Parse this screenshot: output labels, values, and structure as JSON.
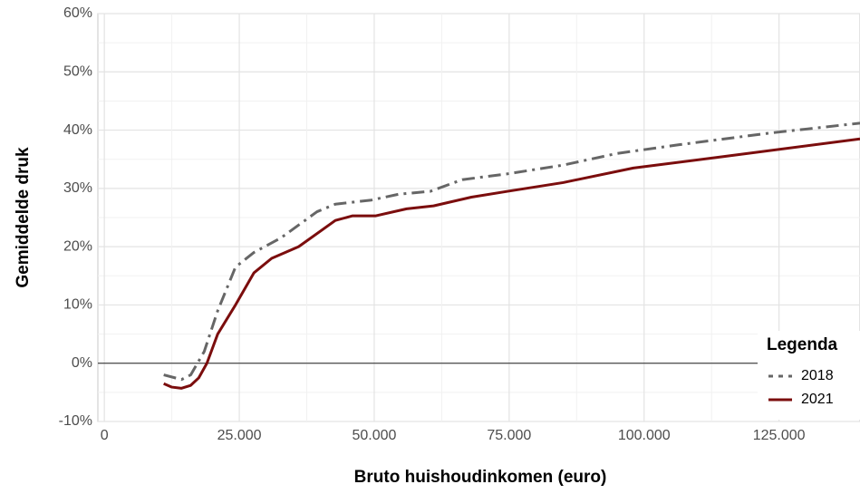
{
  "chart_data": {
    "type": "line",
    "x_label": "Bruto huishoudinkomen (euro)",
    "y_label": "Gemiddelde druk",
    "legend_title": "Legenda",
    "legend_position": "bottom-right",
    "grid": true,
    "xlim": [
      -1200,
      140000
    ],
    "ylim": [
      -10,
      60
    ],
    "xticks": [
      0,
      {
        "value": 25000,
        "label": "25.000"
      },
      {
        "value": 50000,
        "label": "50.000"
      },
      {
        "value": 75000,
        "label": "75.000"
      },
      {
        "value": 100000,
        "label": "100.000"
      },
      {
        "value": 125000,
        "label": "125.000"
      }
    ],
    "yticks": [
      {
        "value": -10,
        "label": "-10%"
      },
      {
        "value": 0,
        "label": "0%"
      },
      {
        "value": 10,
        "label": "10%"
      },
      {
        "value": 20,
        "label": "20%"
      },
      {
        "value": 30,
        "label": "30%"
      },
      {
        "value": 40,
        "label": "40%"
      },
      {
        "value": 50,
        "label": "50%"
      },
      {
        "value": 60,
        "label": "60%"
      }
    ],
    "series": [
      {
        "name": "2018",
        "color": "#666666",
        "linestyle": "dashdot",
        "x": [
          11000,
          14300,
          16000,
          18500,
          21000,
          24300,
          27700,
          32700,
          39400,
          42800,
          49500,
          54500,
          60400,
          66300,
          74700,
          85000,
          95000,
          106500,
          123300,
          140000
        ],
        "values": [
          -2,
          -2.8,
          -2,
          2,
          9,
          16.5,
          19,
          21.5,
          26,
          27.3,
          28,
          29,
          29.5,
          31.5,
          32.5,
          34,
          36,
          37.5,
          39.5,
          41.2
        ]
      },
      {
        "name": "2021",
        "color": "#7b0d0d",
        "linestyle": "solid",
        "x": [
          11000,
          12500,
          14300,
          16000,
          17500,
          19000,
          21000,
          24300,
          27700,
          31000,
          36000,
          42800,
          46000,
          50300,
          56000,
          61000,
          68000,
          74700,
          85000,
          98000,
          115000,
          140000
        ],
        "values": [
          -3.5,
          -4.1,
          -4.3,
          -3.8,
          -2.5,
          0,
          5,
          10,
          15.5,
          18,
          20,
          24.5,
          25.3,
          25.3,
          26.5,
          27,
          28.5,
          29.5,
          31,
          33.5,
          35.5,
          38.5
        ]
      }
    ]
  }
}
